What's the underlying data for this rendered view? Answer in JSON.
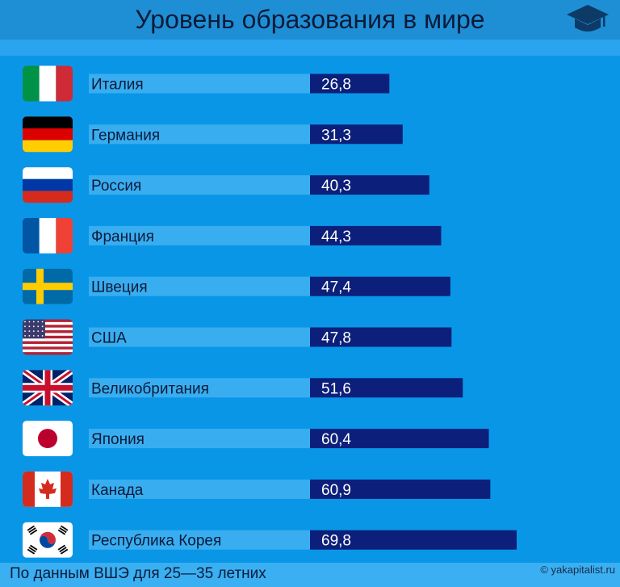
{
  "header": {
    "title": "Уровень образования в мире"
  },
  "footer": {
    "source": "По данным ВШЭ для 25—35 летних",
    "copyright": "© yakapitalist.ru"
  },
  "colors": {
    "background": "#0a96e6",
    "label_band": "#38aef0",
    "bar": "#0c1f7a",
    "text_dark": "#0d1a3a",
    "text_light": "#ffffff"
  },
  "chart_data": {
    "type": "bar",
    "orientation": "horizontal",
    "title": "Уровень образования в мире",
    "categories": [
      "Италия",
      "Германия",
      "Россия",
      "Франция",
      "Швеция",
      "США",
      "Великобритания",
      "Япония",
      "Канада",
      "Республика Корея"
    ],
    "flags": [
      "italy-flag",
      "germany-flag",
      "russia-flag",
      "france-flag",
      "sweden-flag",
      "usa-flag",
      "uk-flag",
      "japan-flag",
      "canada-flag",
      "south-korea-flag"
    ],
    "values": [
      26.8,
      31.3,
      40.3,
      44.3,
      47.4,
      47.8,
      51.6,
      60.4,
      60.9,
      69.8
    ],
    "value_labels": [
      "26,8",
      "31,3",
      "40,3",
      "44,3",
      "47,4",
      "47,8",
      "51,6",
      "60,4",
      "60,9",
      "69,8"
    ],
    "xlabel": "",
    "ylabel": ""
  }
}
